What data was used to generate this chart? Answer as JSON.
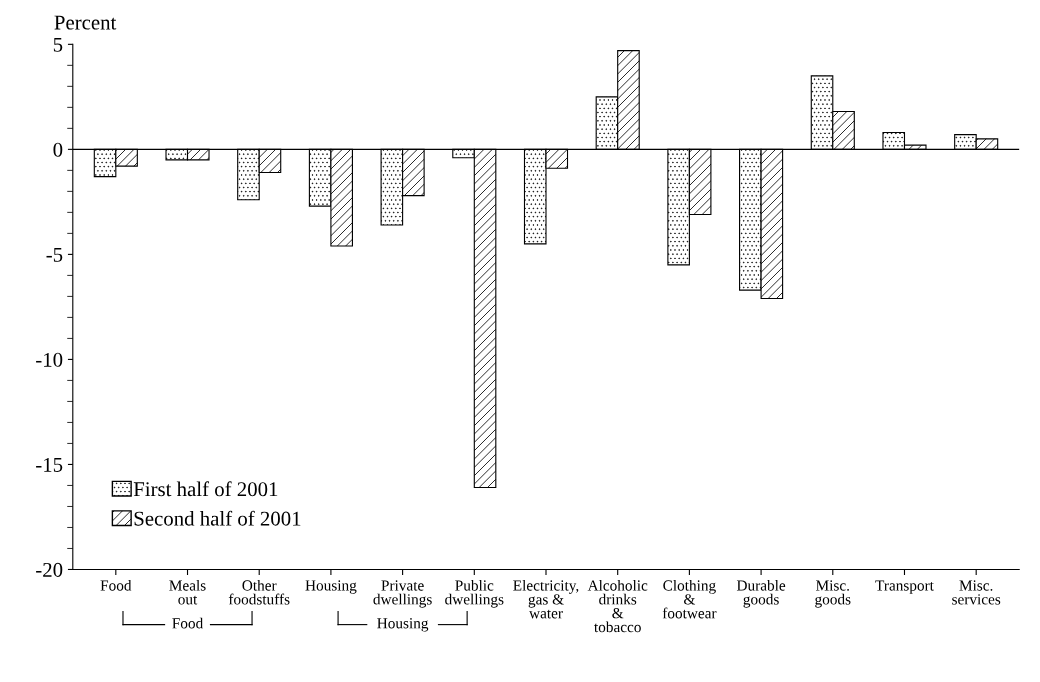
{
  "chart_data": {
    "type": "bar",
    "ylabel": "Percent",
    "categories": [
      "Food",
      "Meals\nout",
      "Other\nfoodstuffs",
      "Housing",
      "Private\ndwellings",
      "Public\ndwellings",
      "Electricity,\ngas &\nwater",
      "Alcoholic\ndrinks\n&\ntobacco",
      "Clothing\n&\nfootwear",
      "Durable\ngoods",
      "Misc.\ngoods",
      "Transport",
      "Misc.\nservices"
    ],
    "series": [
      {
        "name": "First half of 2001",
        "color": "#000000",
        "values": [
          -1.3,
          -0.5,
          -2.4,
          -2.7,
          -3.6,
          -0.4,
          -4.5,
          2.5,
          -5.5,
          -6.7,
          3.5,
          0.8,
          0.7
        ]
      },
      {
        "name": "Second half of 2001",
        "color": "#000000",
        "values": [
          -0.8,
          -0.5,
          -1.1,
          -4.6,
          -2.2,
          -16.1,
          -0.9,
          4.7,
          -3.1,
          -7.1,
          1.8,
          0.2,
          0.5
        ]
      }
    ],
    "ylim": [
      -20,
      5
    ],
    "yticks": [
      -20,
      -15,
      -10,
      -5,
      0,
      5
    ],
    "ref_lines": [
      {
        "axis": "y",
        "value": 0,
        "color": "#000000"
      }
    ],
    "annotations": [
      "Food",
      "Housing"
    ],
    "legend": "bottom left",
    "grid": false
  }
}
